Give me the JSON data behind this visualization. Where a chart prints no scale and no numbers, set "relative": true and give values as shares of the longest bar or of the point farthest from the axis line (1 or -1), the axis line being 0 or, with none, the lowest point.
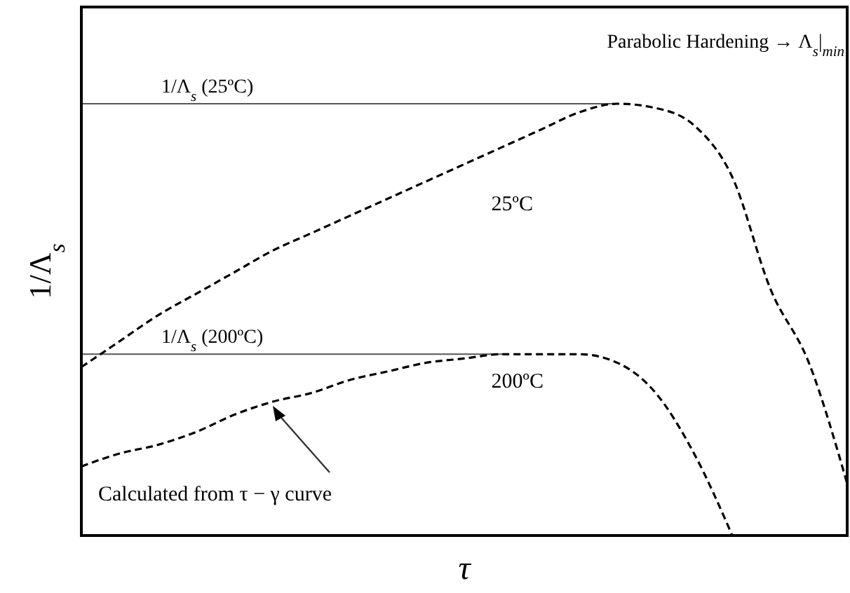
{
  "chart_data": {
    "type": "line",
    "relative": true,
    "xlabel": "τ",
    "ylabel": "1/Λ$_{s}$",
    "categories": [
      null,
      null,
      null,
      null,
      null,
      null,
      null,
      null,
      null,
      null,
      null,
      null,
      null,
      null,
      null,
      null,
      null,
      null,
      null,
      null,
      null
    ],
    "series": [
      {
        "name": "25ºC",
        "color": "#000000",
        "values": [
          0.39,
          0.45,
          0.51,
          0.56,
          0.61,
          0.66,
          0.7,
          0.74,
          0.78,
          0.82,
          0.86,
          0.9,
          0.94,
          0.98,
          1,
          0.99,
          0.95,
          0.83,
          0.57,
          0.4,
          0.12
        ]
      },
      {
        "name": "200ºC",
        "color": "#000000",
        "values": [
          0.16,
          0.19,
          0.21,
          0.24,
          0.28,
          0.31,
          0.33,
          0.36,
          0.38,
          0.4,
          0.41,
          0.42,
          0.42,
          0.42,
          0.4,
          0.33,
          0.19,
          0,
          null,
          null,
          null
        ]
      }
    ],
    "ref_lines": [
      {
        "axis": "y",
        "value": 1,
        "label": "1/Λ$_{s}$ (25ºC)",
        "color": "#555555"
      },
      {
        "axis": "y",
        "value": 0.42,
        "label": "1/Λ$_{s}$ (200ºC)",
        "color": "#555555"
      }
    ],
    "annotations": [
      "Parabolic Hardening → Λ$_{s}$|$_{min}$",
      "Calculated from τ − γ curve"
    ],
    "line_style": "dashed",
    "marker": "none",
    "grid": false,
    "legend": false
  }
}
